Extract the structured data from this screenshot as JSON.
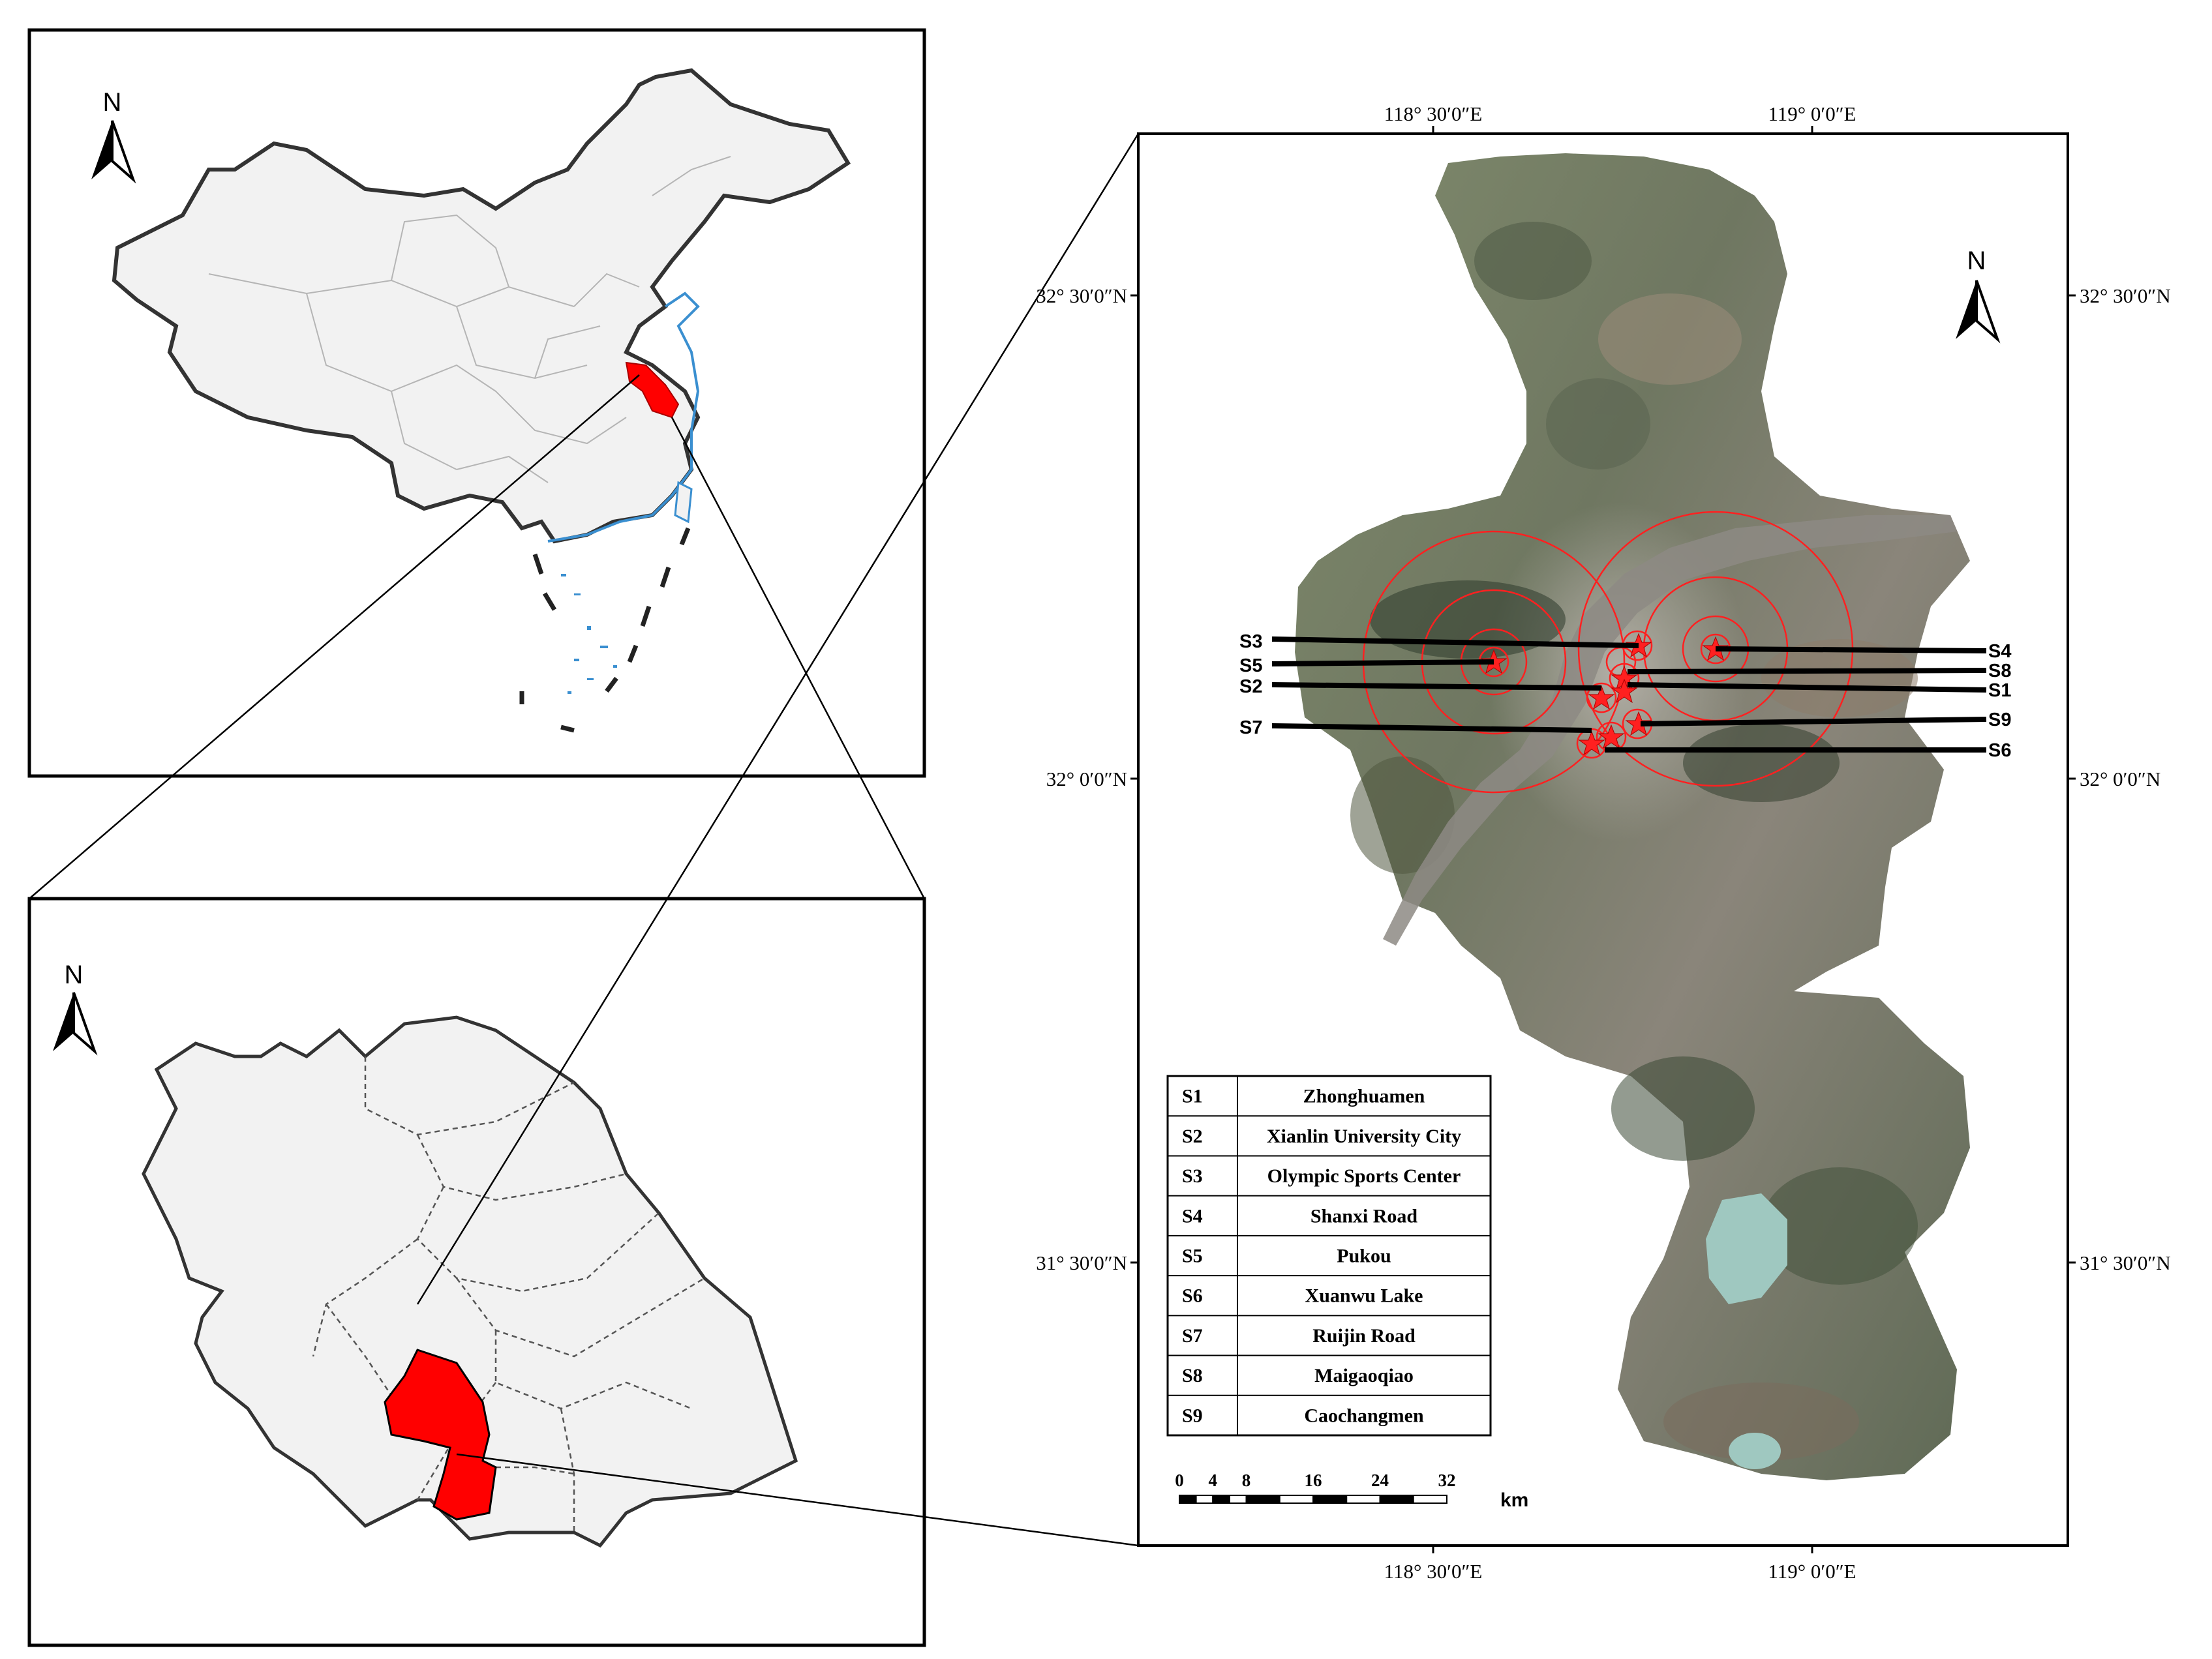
{
  "north_label": "N",
  "china_panel": {},
  "jiangsu_panel": {},
  "detail_map": {
    "longitude_labels": [
      "118° 30′0″E",
      "119° 0′0″E"
    ],
    "latitude_labels": [
      "32° 30′0″N",
      "32° 0′0″N",
      "31° 30′0″N"
    ],
    "sites": [
      {
        "code": "S3",
        "name": "Olympic Sports Center"
      },
      {
        "code": "S5",
        "name": "Pukou"
      },
      {
        "code": "S2",
        "name": "Xianlin University City"
      },
      {
        "code": "S7",
        "name": "Ruijin Road"
      },
      {
        "code": "S4",
        "name": "Shanxi Road"
      },
      {
        "code": "S8",
        "name": "Maigaoqiao"
      },
      {
        "code": "S1",
        "name": "Zhonghuamen"
      },
      {
        "code": "S9",
        "name": "Caochangmen"
      },
      {
        "code": "S6",
        "name": "Xuanwu Lake"
      }
    ],
    "legend": [
      {
        "code": "S1",
        "name": "Zhonghuamen"
      },
      {
        "code": "S2",
        "name": "Xianlin University City"
      },
      {
        "code": "S3",
        "name": "Olympic Sports Center"
      },
      {
        "code": "S4",
        "name": "Shanxi Road"
      },
      {
        "code": "S5",
        "name": "Pukou"
      },
      {
        "code": "S6",
        "name": "Xuanwu Lake"
      },
      {
        "code": "S7",
        "name": "Ruijin Road"
      },
      {
        "code": "S8",
        "name": "Maigaoqiao"
      },
      {
        "code": "S9",
        "name": "Caochangmen"
      }
    ],
    "scale_bar": {
      "ticks": [
        "0",
        "4",
        "8",
        "16",
        "24",
        "32"
      ],
      "unit": "km"
    }
  },
  "colors": {
    "highlight": "#ff0000",
    "land": "#f2f2f2",
    "coast": "#3a8fd0",
    "frame": "#000000"
  }
}
